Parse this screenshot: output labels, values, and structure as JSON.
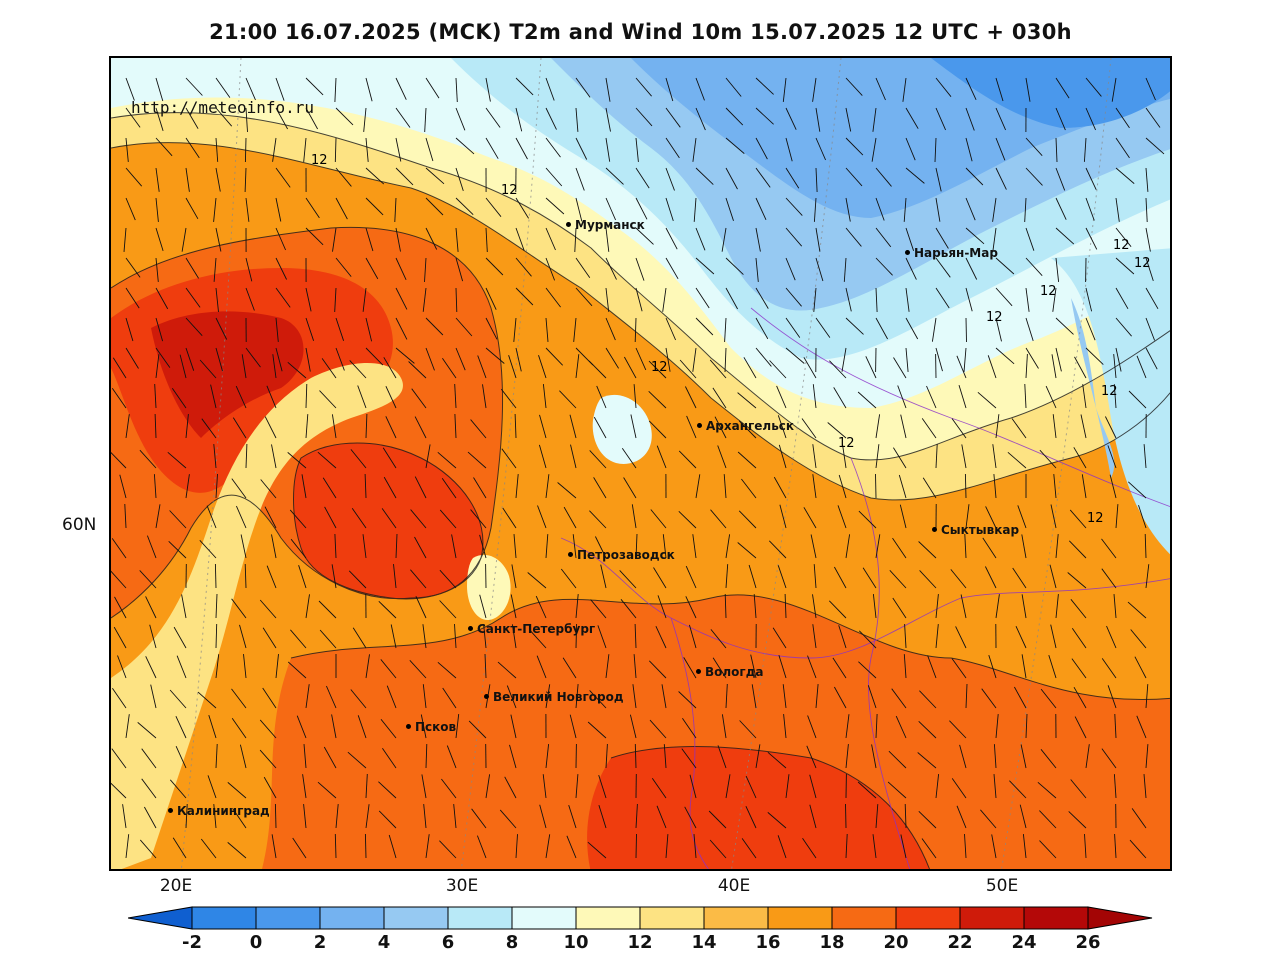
{
  "header": {
    "title": "21:00 16.07.2025 (MCK) T2m and Wind 10m 15.07.2025 12 UTC + 030h"
  },
  "map": {
    "watermark": "http://meteoinfo.ru",
    "longitude_labels": [
      "20E",
      "30E",
      "40E",
      "50E"
    ],
    "latitude_labels": [
      "60N"
    ],
    "contour_label": "12",
    "cities": [
      {
        "name": "Мурманск"
      },
      {
        "name": "Нарьян-Мар"
      },
      {
        "name": "Архангельск"
      },
      {
        "name": "Сыктывкар"
      },
      {
        "name": "Петрозаводск"
      },
      {
        "name": "Санкт-Петербург"
      },
      {
        "name": "Вологда"
      },
      {
        "name": "Великий Новгород"
      },
      {
        "name": "Псков"
      },
      {
        "name": "Калининград"
      }
    ]
  },
  "colorbar": {
    "ticks": [
      "-2",
      "0",
      "2",
      "4",
      "6",
      "8",
      "10",
      "12",
      "14",
      "16",
      "18",
      "20",
      "22",
      "24",
      "26"
    ],
    "colors": [
      "#1b6fd8",
      "#2f86e6",
      "#4a98ec",
      "#74b2f0",
      "#96c9f2",
      "#b8e9f7",
      "#e3fbfb",
      "#fef9b8",
      "#fde383",
      "#fbbb46",
      "#f99a16",
      "#f66a14",
      "#ef3d0e",
      "#cf1b0a",
      "#b40808"
    ],
    "low_color": "#0f5fd0",
    "high_color": "#a30505"
  }
}
